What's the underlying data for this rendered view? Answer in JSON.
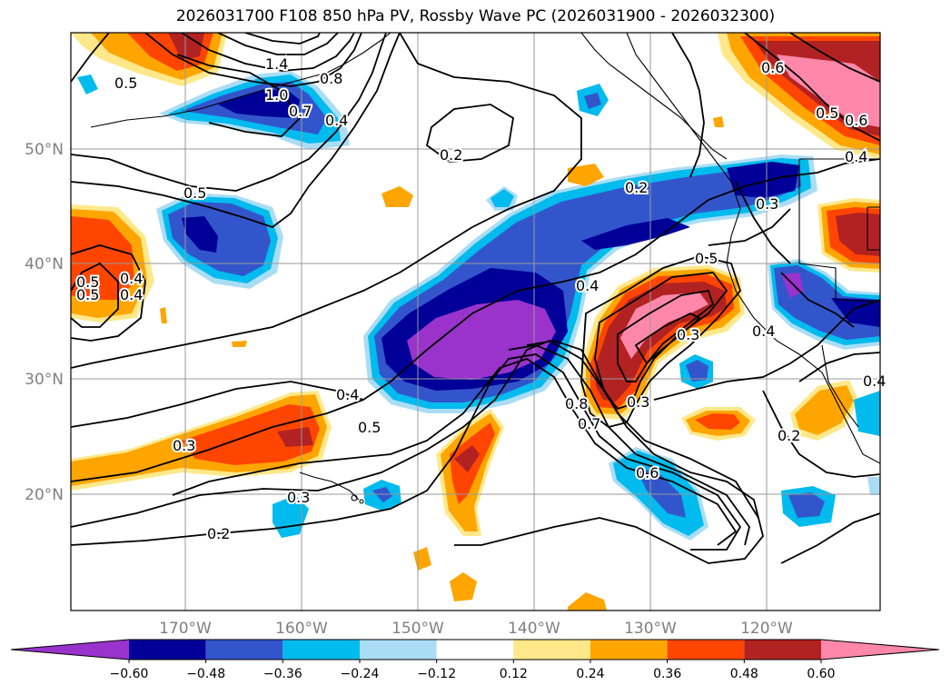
{
  "title": "2026031700 F108 850 hPa PV, Rossby Wave PC (2026031900 - 2026032300)",
  "lat_labels": [
    "50°N",
    "40°N",
    "30°N",
    "20°N"
  ],
  "lon_labels": [
    "170°W",
    "160°W",
    "150°W",
    "140°W",
    "130°W",
    "120°W"
  ],
  "colorbar": {
    "ticks": [
      "−0.60",
      "−0.48",
      "−0.36",
      "−0.24",
      "−0.12",
      "0.12",
      "0.24",
      "0.36",
      "0.48",
      "0.60"
    ],
    "colors": [
      "#9933cc",
      "#000099",
      "#3355cc",
      "#00bbee",
      "#aaddf5",
      "#ffffff",
      "#ffe88a",
      "#ffa500",
      "#ff4500",
      "#b22222",
      "#ff88aa"
    ]
  },
  "contour_labels": [
    "0.5",
    "1.4",
    "1.0",
    "0.7",
    "0.8",
    "0.4",
    "0.2",
    "0.5",
    "0.2",
    "0.5",
    "0.3",
    "0.4",
    "0.5",
    "0.4",
    "0.3",
    "0.8",
    "0.7",
    "0.3",
    "0.6",
    "0.3",
    "0.3",
    "0.2",
    "0.6",
    "0.5",
    "0.6",
    "0.4",
    "0.4",
    "0.5",
    "0.4",
    "0.4",
    "0.2",
    "0.5",
    "0.4"
  ]
}
